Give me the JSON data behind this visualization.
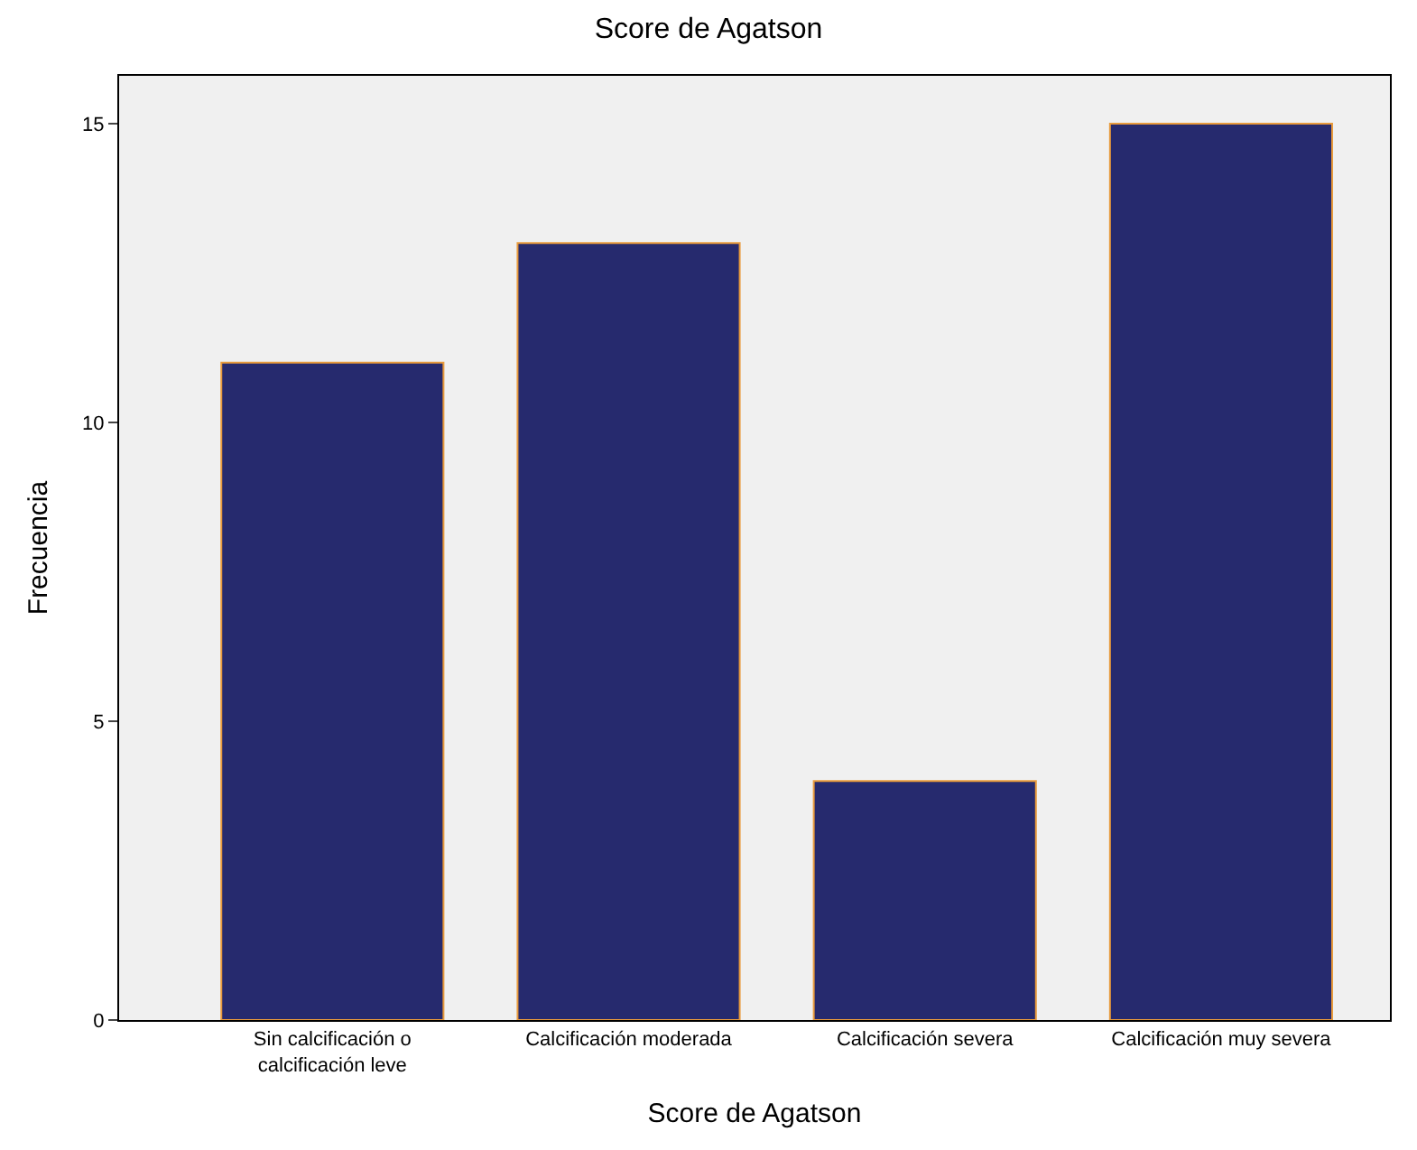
{
  "chart_data": {
    "type": "bar",
    "title": "Score de Agatson",
    "xlabel": "Score de Agatson",
    "ylabel": "Frecuencia",
    "categories": [
      "Sin calcificación o\ncalcificación leve",
      "Calcificación moderada",
      "Calcificación severa",
      "Calcificación muy severa"
    ],
    "values": [
      11,
      13,
      4,
      15
    ],
    "color": "#262a6e",
    "ylim": [
      0,
      15.8
    ],
    "yticks": [
      0,
      5,
      10,
      15
    ],
    "grid": false
  }
}
